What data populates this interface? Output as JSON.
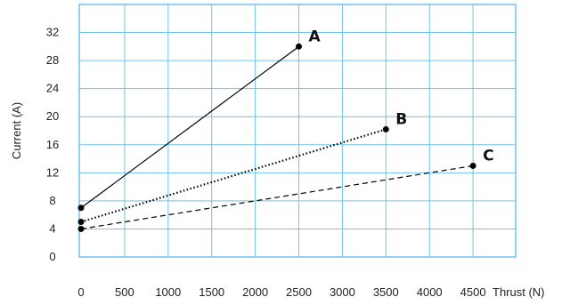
{
  "chart_data": {
    "type": "line",
    "title": "",
    "xlabel": "Thrust (N)",
    "ylabel": "Current (A)",
    "xlim": [
      0,
      5000
    ],
    "ylim": [
      0,
      36
    ],
    "x_ticks": [
      0,
      500,
      1000,
      1500,
      2000,
      2500,
      3000,
      3500,
      4000,
      4500
    ],
    "y_ticks": [
      0,
      4,
      8,
      12,
      16,
      20,
      24,
      28,
      32
    ],
    "grid": true,
    "grid_color": "#6ec3ea",
    "legend": "none",
    "series": [
      {
        "name": "A",
        "style": "solid",
        "color": "#000000",
        "points": [
          [
            0,
            7
          ],
          [
            2500,
            30
          ]
        ]
      },
      {
        "name": "B",
        "style": "dotted",
        "color": "#000000",
        "points": [
          [
            0,
            5
          ],
          [
            3500,
            18.2
          ]
        ]
      },
      {
        "name": "C",
        "style": "dashed",
        "color": "#000000",
        "points": [
          [
            0,
            4
          ],
          [
            4500,
            13
          ]
        ]
      }
    ]
  }
}
